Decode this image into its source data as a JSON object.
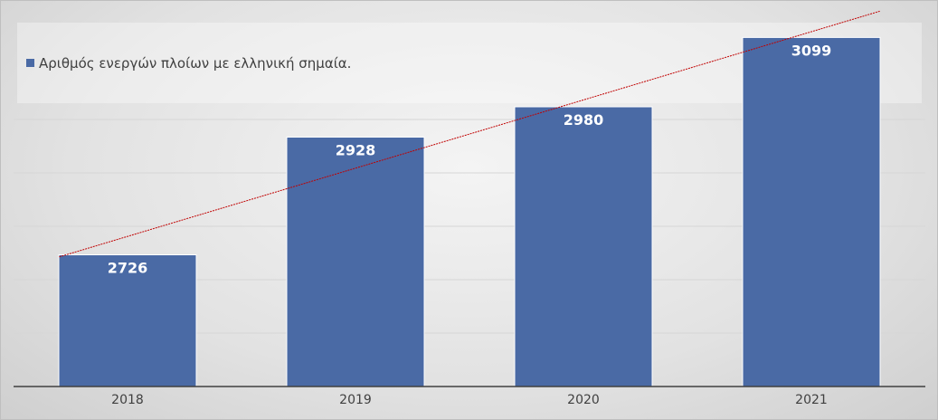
{
  "chart_data": {
    "type": "bar",
    "categories": [
      "2018",
      "2019",
      "2020",
      "2021"
    ],
    "series": [
      {
        "name": "Αριθμός ενεργών πλοίων με ελληνική σημαία.",
        "values": [
          2726,
          2928,
          2980,
          3099
        ],
        "color": "#4a6aa5"
      }
    ],
    "data_labels": [
      "2726",
      "2928",
      "2980",
      "3099"
    ],
    "trendline": {
      "type": "linear",
      "color": "#c00000"
    },
    "ylim": [
      2500,
      3140
    ],
    "grid": true,
    "legend_position": "top-left",
    "background": "#e6e6e6"
  }
}
